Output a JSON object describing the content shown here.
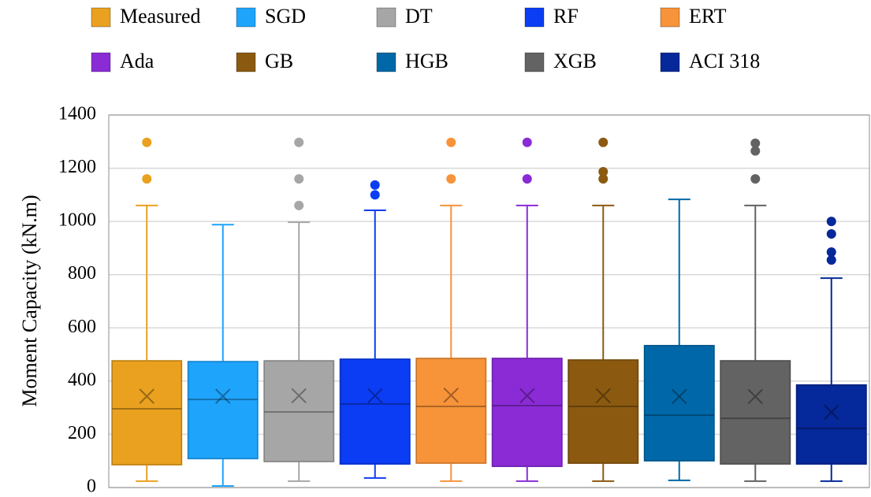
{
  "chart_data": {
    "type": "box",
    "y_label": "Moment Capacity (kN.m)",
    "ylim": [
      0,
      1400
    ],
    "yticks": [
      0,
      200,
      400,
      600,
      800,
      1000,
      1200,
      1400
    ],
    "grid": true,
    "legend": "top",
    "series": [
      {
        "name": "Measured",
        "color": "#e9a11f",
        "min": 24,
        "q1": 86,
        "median": 296,
        "q3": 476,
        "max": 1060,
        "mean": 343,
        "outliers": [
          1160,
          1297
        ]
      },
      {
        "name": "SGD",
        "color": "#1fa4fb",
        "min": 6,
        "q1": 109,
        "median": 331,
        "q3": 473,
        "max": 988,
        "mean": 343,
        "outliers": []
      },
      {
        "name": "DT",
        "color": "#a6a6a6",
        "min": 24,
        "q1": 98,
        "median": 284,
        "q3": 476,
        "max": 997,
        "mean": 345,
        "outliers": [
          1060,
          1160,
          1297
        ]
      },
      {
        "name": "RF",
        "color": "#0b3df4",
        "min": 36,
        "q1": 89,
        "median": 314,
        "q3": 482,
        "max": 1042,
        "mean": 345,
        "outliers": [
          1100,
          1137
        ]
      },
      {
        "name": "ERT",
        "color": "#f79339",
        "min": 24,
        "q1": 92,
        "median": 305,
        "q3": 485,
        "max": 1060,
        "mean": 347,
        "outliers": [
          1160,
          1297
        ]
      },
      {
        "name": "Ada",
        "color": "#8a2bd6",
        "min": 24,
        "q1": 80,
        "median": 308,
        "q3": 485,
        "max": 1060,
        "mean": 345,
        "outliers": [
          1160,
          1297
        ]
      },
      {
        "name": "GB",
        "color": "#8b5a10",
        "min": 24,
        "q1": 92,
        "median": 305,
        "q3": 479,
        "max": 1060,
        "mean": 345,
        "outliers": [
          1160,
          1187,
          1297
        ]
      },
      {
        "name": "HGB",
        "color": "#0068a8",
        "min": 27,
        "q1": 101,
        "median": 272,
        "q3": 533,
        "max": 1083,
        "mean": 342,
        "outliers": []
      },
      {
        "name": "XGB",
        "color": "#636363",
        "min": 24,
        "q1": 89,
        "median": 260,
        "q3": 476,
        "max": 1060,
        "mean": 342,
        "outliers": [
          1160,
          1265,
          1294
        ]
      },
      {
        "name": "ACI 318",
        "color": "#05289a",
        "min": 24,
        "q1": 89,
        "median": 222,
        "q3": 385,
        "max": 787,
        "mean": 283,
        "outliers": [
          855,
          885,
          953,
          1000
        ]
      }
    ]
  }
}
